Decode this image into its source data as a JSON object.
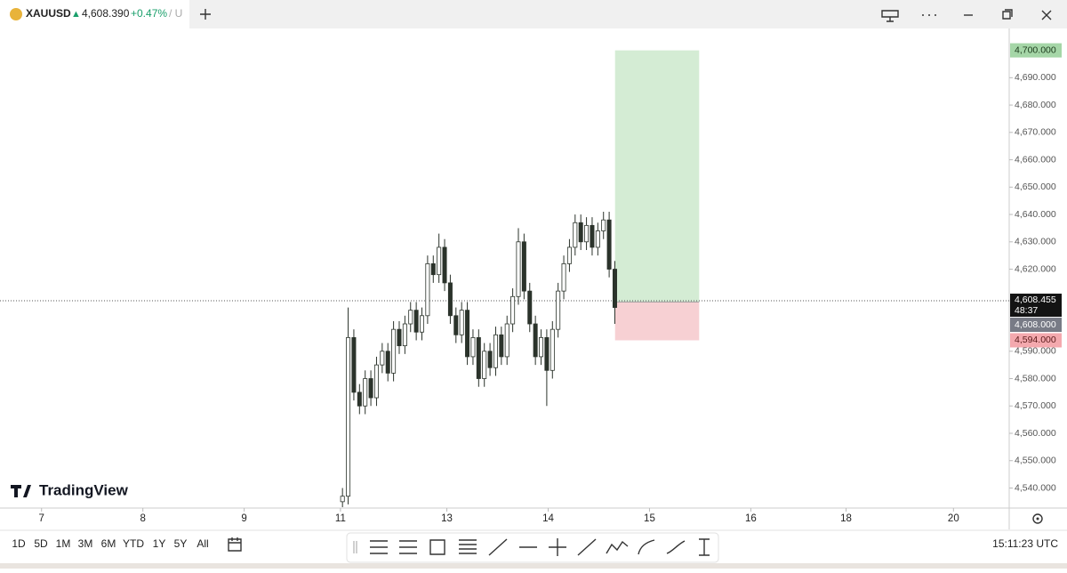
{
  "tab": {
    "symbol": "XAUUSD",
    "price": "4,608.390",
    "change": "+0.47%",
    "suffix": "/ U"
  },
  "watermark": "TradingView",
  "ranges": [
    "1D",
    "5D",
    "1M",
    "3M",
    "6M",
    "YTD",
    "1Y",
    "5Y",
    "All"
  ],
  "clock": "15:11:23 UTC",
  "chart_data": {
    "type": "candlestick",
    "up_color": "#ffffff",
    "down_color": "#2b332b",
    "edge_color": "#2b332b",
    "grid": false,
    "ylim": [
      4533,
      4708
    ],
    "yticks": [
      {
        "value": 4540,
        "label": "4,540.000"
      },
      {
        "value": 4550,
        "label": "4,550.000"
      },
      {
        "value": 4560,
        "label": "4,560.000"
      },
      {
        "value": 4570,
        "label": "4,570.000"
      },
      {
        "value": 4580,
        "label": "4,580.000"
      },
      {
        "value": 4590,
        "label": "4,590.000"
      },
      {
        "value": 4620,
        "label": "4,620.000"
      },
      {
        "value": 4630,
        "label": "4,630.000"
      },
      {
        "value": 4640,
        "label": "4,640.000"
      },
      {
        "value": 4650,
        "label": "4,650.000"
      },
      {
        "value": 4660,
        "label": "4,660.000"
      },
      {
        "value": 4670,
        "label": "4,670.000"
      },
      {
        "value": 4680,
        "label": "4,680.000"
      },
      {
        "value": 4690,
        "label": "4,690.000"
      }
    ],
    "xlim": [
      -0.41,
      9.55
    ],
    "xticks": [
      {
        "value": 0,
        "label": "7"
      },
      {
        "value": 1,
        "label": "8"
      },
      {
        "value": 2,
        "label": "9"
      },
      {
        "value": 2.95,
        "label": "11"
      },
      {
        "value": 4,
        "label": "13"
      },
      {
        "value": 5,
        "label": "14"
      },
      {
        "value": 6,
        "label": "15"
      },
      {
        "value": 7,
        "label": "16"
      },
      {
        "value": 7.94,
        "label": "18"
      },
      {
        "value": 9,
        "label": "20"
      }
    ],
    "x": [
      2.97,
      3.026,
      3.082,
      3.138,
      3.194,
      3.25,
      3.306,
      3.362,
      3.418,
      3.474,
      3.53,
      3.586,
      3.642,
      3.698,
      3.754,
      3.81,
      3.866,
      3.922,
      3.978,
      4.034,
      4.09,
      4.146,
      4.202,
      4.258,
      4.314,
      4.37,
      4.426,
      4.482,
      4.538,
      4.594,
      4.65,
      4.706,
      4.762,
      4.818,
      4.874,
      4.93,
      4.986,
      5.042,
      5.098,
      5.154,
      5.21,
      5.266,
      5.322,
      5.378,
      5.434,
      5.49,
      5.546,
      5.602,
      5.658
    ],
    "open": [
      4535,
      4537,
      4595,
      4575,
      4570,
      4580,
      4573,
      4585,
      4590,
      4582,
      4598,
      4592,
      4600,
      4605,
      4597,
      4603,
      4622,
      4618,
      4628,
      4615,
      4603,
      4596,
      4605,
      4588,
      4595,
      4580,
      4590,
      4584,
      4596,
      4588,
      4600,
      4610,
      4630,
      4612,
      4600,
      4588,
      4595,
      4583,
      4598,
      4612,
      4622,
      4628,
      4637,
      4630,
      4636,
      4628,
      4634,
      4638,
      4620
    ],
    "high": [
      4540,
      4606,
      4598,
      4578,
      4583,
      4583,
      4588,
      4593,
      4593,
      4601,
      4601,
      4603,
      4608,
      4608,
      4606,
      4625,
      4625,
      4633,
      4631,
      4618,
      4606,
      4608,
      4608,
      4598,
      4598,
      4593,
      4593,
      4599,
      4599,
      4603,
      4613,
      4635,
      4633,
      4615,
      4603,
      4598,
      4598,
      4601,
      4615,
      4625,
      4631,
      4640,
      4640,
      4639,
      4639,
      4637,
      4641,
      4641,
      4623
    ],
    "low": [
      4533,
      4534,
      4572,
      4567,
      4567,
      4570,
      4570,
      4582,
      4579,
      4579,
      4589,
      4589,
      4597,
      4594,
      4594,
      4600,
      4615,
      4615,
      4612,
      4600,
      4593,
      4593,
      4585,
      4585,
      4577,
      4577,
      4581,
      4581,
      4585,
      4585,
      4597,
      4607,
      4609,
      4597,
      4585,
      4585,
      4570,
      4580,
      4595,
      4609,
      4619,
      4625,
      4627,
      4627,
      4625,
      4625,
      4631,
      4617,
      4600
    ],
    "close": [
      4537,
      4595,
      4575,
      4570,
      4580,
      4573,
      4585,
      4590,
      4582,
      4598,
      4592,
      4600,
      4605,
      4597,
      4603,
      4622,
      4618,
      4628,
      4615,
      4603,
      4596,
      4605,
      4588,
      4595,
      4580,
      4590,
      4584,
      4596,
      4588,
      4600,
      4610,
      4630,
      4612,
      4600,
      4588,
      4595,
      4583,
      4598,
      4612,
      4622,
      4628,
      4637,
      4630,
      4636,
      4628,
      4634,
      4638,
      4620,
      4606
    ],
    "position": {
      "x_start": 5.66,
      "x_end": 6.49,
      "target_color": "#d4ecd4",
      "stop_color": "#f7d0d3",
      "target": {
        "value": 4700,
        "label": "4,700.000"
      },
      "entry": {
        "value": 4608,
        "label": "4,608.000"
      },
      "stop": {
        "value": 4594,
        "label": "4,594.000"
      }
    },
    "last_price": {
      "value": 4608.455,
      "label": "4,608.455"
    },
    "countdown": "48:37"
  }
}
